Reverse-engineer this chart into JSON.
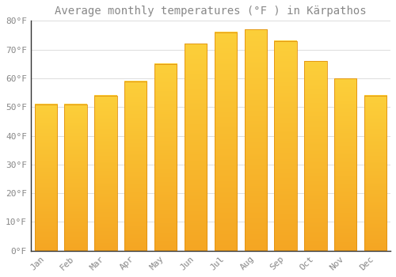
{
  "title": "Average monthly temperatures (°F ) in Kärpathos",
  "months": [
    "Jan",
    "Feb",
    "Mar",
    "Apr",
    "May",
    "Jun",
    "Jul",
    "Aug",
    "Sep",
    "Oct",
    "Nov",
    "Dec"
  ],
  "values": [
    51,
    51,
    54,
    59,
    65,
    72,
    76,
    77,
    73,
    66,
    60,
    54
  ],
  "bar_color_top": "#FCCF3A",
  "bar_color_bottom": "#F5A623",
  "bar_edge_color": "#E09010",
  "background_color": "#FFFFFF",
  "grid_color": "#DDDDDD",
  "text_color": "#888888",
  "ylim": [
    0,
    80
  ],
  "yticks": [
    0,
    10,
    20,
    30,
    40,
    50,
    60,
    70,
    80
  ],
  "ytick_labels": [
    "0°F",
    "10°F",
    "20°F",
    "30°F",
    "40°F",
    "50°F",
    "60°F",
    "70°F",
    "80°F"
  ],
  "title_fontsize": 10,
  "tick_fontsize": 8,
  "bar_width": 0.75
}
